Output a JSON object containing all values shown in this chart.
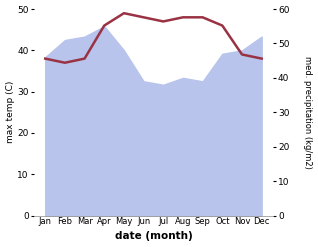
{
  "months": [
    "Jan",
    "Feb",
    "Mar",
    "Apr",
    "May",
    "Jun",
    "Jul",
    "Aug",
    "Sep",
    "Oct",
    "Nov",
    "Dec"
  ],
  "temp_values": [
    38,
    37,
    38,
    46,
    49,
    48,
    47,
    48,
    48,
    46,
    39,
    38
  ],
  "precip_values": [
    46,
    51,
    52,
    55,
    48,
    39,
    38,
    40,
    39,
    47,
    48,
    52
  ],
  "temp_color": "#993344",
  "precip_fill_color": "#b8c4ec",
  "temp_ylim": [
    0,
    50
  ],
  "precip_ylim": [
    0,
    60
  ],
  "ylabel_left": "max temp (C)",
  "ylabel_right": "med. precipitation (kg/m2)",
  "xlabel": "date (month)",
  "bg_color": "#ffffff",
  "temp_linewidth": 1.8
}
